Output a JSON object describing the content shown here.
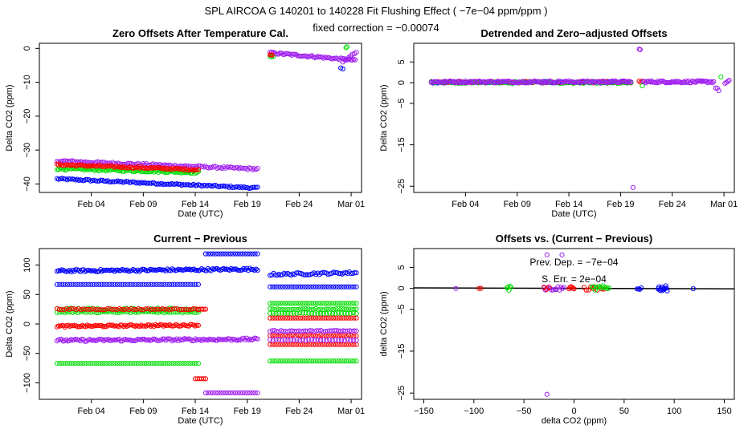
{
  "figure": {
    "title": "SPL   AIRCOA G   140201 to 140228   Fit Flushing Effect ( −7e−04 ppm/ppm )",
    "subtitle": "fixed correction = −0.00074"
  },
  "colors": {
    "blue": "#0000ff",
    "red": "#ff0000",
    "green": "#00dd00",
    "purple": "#a020f0"
  },
  "chart_data": [
    {
      "type": "scatter",
      "title": "Zero Offsets After Temperature Cal.",
      "xlabel": "Date (UTC)",
      "ylabel": "Delta CO2 (ppm)",
      "xlim": [
        30,
        61
      ],
      "ylim": [
        -42.5,
        1.5
      ],
      "xticks": [
        {
          "v": 35,
          "label": "Feb 04"
        },
        {
          "v": 40,
          "label": "Feb 09"
        },
        {
          "v": 45,
          "label": "Feb 14"
        },
        {
          "v": 50,
          "label": "Feb 19"
        },
        {
          "v": 55,
          "label": "Feb 24"
        },
        {
          "v": 60,
          "label": "Mar 01"
        }
      ],
      "yticks": [
        0,
        -10,
        -20,
        -30,
        -40
      ],
      "series": [
        {
          "name": "blue",
          "color": "blue",
          "segments": [
            {
              "x0": 31.7,
              "x1": 51.0,
              "y0": -38.5,
              "y1": -41.2,
              "n": 120,
              "jit": 0.25
            },
            {
              "x0": 59.0,
              "x1": 59.2,
              "y0": -5.8,
              "y1": -6.2,
              "n": 2,
              "jit": 0.2
            }
          ]
        },
        {
          "name": "purple",
          "color": "purple",
          "segments": [
            {
              "x0": 31.7,
              "x1": 51.0,
              "y0": -33.2,
              "y1": -35.6,
              "n": 120,
              "jit": 0.3
            },
            {
              "x0": 52.2,
              "x1": 60.4,
              "y0": -1.3,
              "y1": -3.5,
              "n": 60,
              "jit": 0.3
            },
            {
              "x0": 59.2,
              "x1": 60.5,
              "y0": -4.0,
              "y1": -1.0,
              "n": 8,
              "jit": 0.3
            }
          ]
        },
        {
          "name": "green",
          "color": "green",
          "segments": [
            {
              "x0": 31.7,
              "x1": 45.3,
              "y0": -35.5,
              "y1": -36.6,
              "n": 90,
              "jit": 0.3
            },
            {
              "x0": 52.2,
              "x1": 52.5,
              "y0": -2.5,
              "y1": -2.2,
              "n": 3,
              "jit": 0.2
            },
            {
              "x0": 59.5,
              "x1": 59.6,
              "y0": 0.3,
              "y1": 0.3,
              "n": 2,
              "jit": 0.2
            }
          ]
        },
        {
          "name": "red",
          "color": "red",
          "segments": [
            {
              "x0": 31.7,
              "x1": 45.3,
              "y0": -34.3,
              "y1": -35.8,
              "n": 90,
              "jit": 0.25
            },
            {
              "x0": 52.2,
              "x1": 52.4,
              "y0": -2.0,
              "y1": -1.8,
              "n": 3,
              "jit": 0.2
            }
          ]
        }
      ]
    },
    {
      "type": "scatter",
      "title": "Detrended and Zero−adjusted Offsets",
      "xlabel": "Date (UTC)",
      "ylabel": "Delta CO2 (ppm)",
      "xlim": [
        30,
        61
      ],
      "ylim": [
        -26.5,
        9.5
      ],
      "xticks": [
        {
          "v": 35,
          "label": "Feb 04"
        },
        {
          "v": 40,
          "label": "Feb 09"
        },
        {
          "v": 45,
          "label": "Feb 14"
        },
        {
          "v": 50,
          "label": "Feb 19"
        },
        {
          "v": 55,
          "label": "Feb 24"
        },
        {
          "v": 60,
          "label": "Mar 01"
        }
      ],
      "yticks": [
        5,
        0,
        -5,
        -15,
        -25
      ],
      "series": [
        {
          "name": "blue",
          "color": "blue",
          "segments": [
            {
              "x0": 31.7,
              "x1": 51.0,
              "y0": 0.1,
              "y1": 0.1,
              "n": 100,
              "jit": 0.2
            }
          ]
        },
        {
          "name": "red",
          "color": "red",
          "segments": [
            {
              "x0": 31.7,
              "x1": 51.0,
              "y0": 0.1,
              "y1": 0.1,
              "n": 60,
              "jit": 0.2
            },
            {
              "x0": 51.8,
              "x1": 52.1,
              "y0": 0.2,
              "y1": 0.2,
              "n": 3,
              "jit": 0.2
            }
          ]
        },
        {
          "name": "green",
          "color": "green",
          "segments": [
            {
              "x0": 31.7,
              "x1": 51.0,
              "y0": 0.0,
              "y1": 0.0,
              "n": 60,
              "jit": 0.2
            },
            {
              "x0": 52.1,
              "x1": 52.1,
              "y0": -0.8,
              "y1": -0.8,
              "n": 1,
              "jit": 0.1
            },
            {
              "x0": 59.7,
              "x1": 59.7,
              "y0": 1.4,
              "y1": 1.4,
              "n": 1,
              "jit": 0.1
            }
          ]
        },
        {
          "name": "purple",
          "color": "purple",
          "segments": [
            {
              "x0": 31.7,
              "x1": 51.0,
              "y0": 0.2,
              "y1": 0.2,
              "n": 130,
              "jit": 0.25
            },
            {
              "x0": 52.2,
              "x1": 59.0,
              "y0": 0.2,
              "y1": 0.2,
              "n": 60,
              "jit": 0.25
            },
            {
              "x0": 59.2,
              "x1": 59.5,
              "y0": -1.2,
              "y1": -1.8,
              "n": 3,
              "jit": 0.2
            },
            {
              "x0": 60.1,
              "x1": 60.5,
              "y0": -0.2,
              "y1": 0.4,
              "n": 4,
              "jit": 0.2
            },
            {
              "x0": 51.8,
              "x1": 51.9,
              "y0": 8.0,
              "y1": 8.0,
              "n": 2,
              "jit": 0.1
            },
            {
              "x0": 51.2,
              "x1": 51.2,
              "y0": -25.3,
              "y1": -25.3,
              "n": 1,
              "jit": 0.0
            }
          ]
        }
      ]
    },
    {
      "type": "scatter",
      "title": "Current − Previous",
      "xlabel": "Date (UTC)",
      "ylabel": "Delta CO2 (ppm)",
      "xlim": [
        30,
        61
      ],
      "ylim": [
        -128,
        128
      ],
      "xticks": [
        {
          "v": 35,
          "label": "Feb 04"
        },
        {
          "v": 40,
          "label": "Feb 09"
        },
        {
          "v": 45,
          "label": "Feb 14"
        },
        {
          "v": 50,
          "label": "Feb 19"
        },
        {
          "v": 55,
          "label": "Feb 24"
        },
        {
          "v": 60,
          "label": "Mar 01"
        }
      ],
      "yticks": [
        100,
        50,
        0,
        -50,
        -100
      ],
      "series": [
        {
          "name": "blue",
          "color": "blue",
          "segments": [
            {
              "x0": 31.7,
              "x1": 51.0,
              "y0": 90,
              "y1": 93,
              "n": 130,
              "jit": 2
            },
            {
              "x0": 31.7,
              "x1": 45.3,
              "y0": 67,
              "y1": 67,
              "n": 55,
              "jit": 0
            },
            {
              "x0": 46.0,
              "x1": 51.0,
              "y0": 119,
              "y1": 119,
              "n": 22,
              "jit": 0
            },
            {
              "x0": 52.2,
              "x1": 60.5,
              "y0": 84,
              "y1": 87,
              "n": 50,
              "jit": 2
            },
            {
              "x0": 52.2,
              "x1": 60.5,
              "y0": 63,
              "y1": 63,
              "n": 35,
              "jit": 0
            }
          ]
        },
        {
          "name": "green",
          "color": "green",
          "segments": [
            {
              "x0": 31.7,
              "x1": 45.3,
              "y0": 25,
              "y1": 25,
              "n": 60,
              "jit": 2
            },
            {
              "x0": 31.7,
              "x1": 45.3,
              "y0": 20,
              "y1": 20,
              "n": 55,
              "jit": 1
            },
            {
              "x0": 31.7,
              "x1": 45.3,
              "y0": -67,
              "y1": -67,
              "n": 55,
              "jit": 0
            },
            {
              "x0": 52.2,
              "x1": 60.5,
              "y0": 35,
              "y1": 35,
              "n": 35,
              "jit": 0
            },
            {
              "x0": 52.2,
              "x1": 60.5,
              "y0": 25,
              "y1": 25,
              "n": 35,
              "jit": 1
            },
            {
              "x0": 52.2,
              "x1": 60.5,
              "y0": 18,
              "y1": 18,
              "n": 30,
              "jit": 1
            },
            {
              "x0": 52.2,
              "x1": 60.5,
              "y0": -63,
              "y1": -63,
              "n": 35,
              "jit": 0
            }
          ]
        },
        {
          "name": "red",
          "color": "red",
          "segments": [
            {
              "x0": 31.7,
              "x1": 45.3,
              "y0": 25,
              "y1": 25,
              "n": 60,
              "jit": 1
            },
            {
              "x0": 31.7,
              "x1": 45.3,
              "y0": -4,
              "y1": -2,
              "n": 90,
              "jit": 1.5
            },
            {
              "x0": 45.3,
              "x1": 46.0,
              "y0": 25,
              "y1": 25,
              "n": 5,
              "jit": 0
            },
            {
              "x0": 45.0,
              "x1": 46.0,
              "y0": -93,
              "y1": -93,
              "n": 6,
              "jit": 0
            },
            {
              "x0": 52.2,
              "x1": 60.5,
              "y0": 10,
              "y1": 10,
              "n": 35,
              "jit": 0
            },
            {
              "x0": 52.2,
              "x1": 60.5,
              "y0": -20,
              "y1": -20,
              "n": 35,
              "jit": 1
            },
            {
              "x0": 52.2,
              "x1": 60.5,
              "y0": -35,
              "y1": -35,
              "n": 35,
              "jit": 0
            }
          ]
        },
        {
          "name": "purple",
          "color": "purple",
          "segments": [
            {
              "x0": 31.7,
              "x1": 51.0,
              "y0": -28,
              "y1": -26,
              "n": 130,
              "jit": 2
            },
            {
              "x0": 46.0,
              "x1": 51.0,
              "y0": -117,
              "y1": -117,
              "n": 22,
              "jit": 0
            },
            {
              "x0": 52.2,
              "x1": 60.5,
              "y0": -12,
              "y1": -12,
              "n": 40,
              "jit": 1
            },
            {
              "x0": 52.2,
              "x1": 60.5,
              "y0": -27,
              "y1": -27,
              "n": 30,
              "jit": 1
            }
          ]
        }
      ]
    },
    {
      "type": "scatter",
      "title": "Offsets vs. (Current − Previous)",
      "xlabel": "delta CO2 (ppm)",
      "ylabel": "delta CO2 (ppm)",
      "xlim": [
        -160,
        160
      ],
      "ylim": [
        -26.5,
        9.5
      ],
      "xticks": [
        {
          "v": -150,
          "label": "−150"
        },
        {
          "v": -100,
          "label": "−100"
        },
        {
          "v": -50,
          "label": "−50"
        },
        {
          "v": 0,
          "label": "0"
        },
        {
          "v": 50,
          "label": "50"
        },
        {
          "v": 100,
          "label": "100"
        },
        {
          "v": 150,
          "label": "150"
        }
      ],
      "yticks": [
        5,
        0,
        -5,
        -15,
        -25
      ],
      "fit_line": {
        "slope": -0.0007,
        "intercept": 0
      },
      "annotations": [
        "Prev. Dep. =  −7e−04",
        "S. Err. =  2e−04"
      ],
      "series": [
        {
          "name": "purple",
          "color": "purple",
          "segments": [
            {
              "x0": -118,
              "x1": -118,
              "y0": 0.0,
              "y1": 0.0,
              "n": 1,
              "jit": 0.1
            },
            {
              "x0": -30,
              "x1": -10,
              "y0": 0.0,
              "y1": 0.0,
              "n": 14,
              "jit": 0.5
            },
            {
              "x0": -27,
              "x1": -27,
              "y0": 8.0,
              "y1": 8.0,
              "n": 1,
              "jit": 0
            },
            {
              "x0": -12,
              "x1": -12,
              "y0": 8.0,
              "y1": 8.0,
              "n": 1,
              "jit": 0
            },
            {
              "x0": -27,
              "x1": -27,
              "y0": -25.3,
              "y1": -25.3,
              "n": 1,
              "jit": 0
            }
          ]
        },
        {
          "name": "red",
          "color": "red",
          "segments": [
            {
              "x0": -95,
              "x1": -93,
              "y0": 0.0,
              "y1": 0.0,
              "n": 2,
              "jit": 0.1
            },
            {
              "x0": -5,
              "x1": 0,
              "y0": 0.0,
              "y1": 0.0,
              "n": 6,
              "jit": 0.4
            },
            {
              "x0": 10,
              "x1": 30,
              "y0": 0.0,
              "y1": 0.0,
              "n": 10,
              "jit": 0.5
            },
            {
              "x0": -30,
              "x1": -25,
              "y0": 0.0,
              "y1": 0.0,
              "n": 3,
              "jit": 0.3
            }
          ]
        },
        {
          "name": "green",
          "color": "green",
          "segments": [
            {
              "x0": -67,
              "x1": -63,
              "y0": 0.0,
              "y1": 0.0,
              "n": 5,
              "jit": 0.5
            },
            {
              "x0": 18,
              "x1": 35,
              "y0": 0.0,
              "y1": 0.0,
              "n": 12,
              "jit": 0.6
            }
          ]
        },
        {
          "name": "blue",
          "color": "blue",
          "segments": [
            {
              "x0": 63,
              "x1": 67,
              "y0": 0.0,
              "y1": 0.0,
              "n": 4,
              "jit": 0.3
            },
            {
              "x0": 84,
              "x1": 93,
              "y0": 0.0,
              "y1": 0.0,
              "n": 14,
              "jit": 0.6
            },
            {
              "x0": 119,
              "x1": 119,
              "y0": 0.0,
              "y1": 0.0,
              "n": 1,
              "jit": 0.1
            }
          ]
        }
      ]
    }
  ]
}
